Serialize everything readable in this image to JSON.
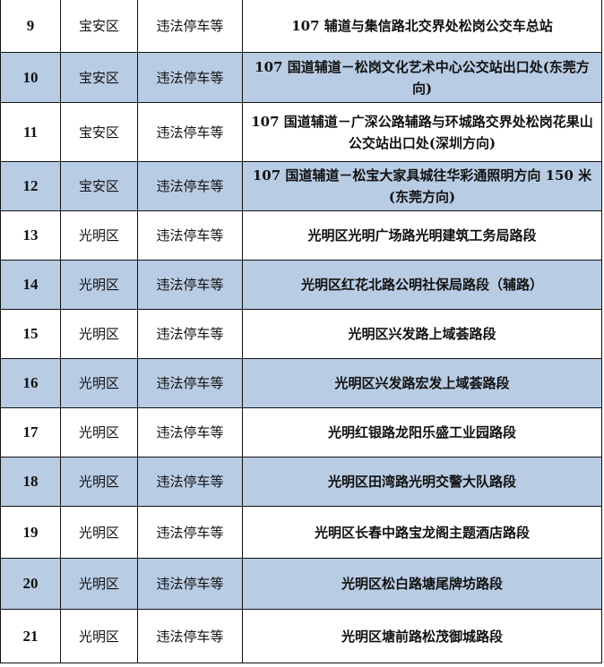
{
  "table": {
    "rows": [
      {
        "no": "9",
        "district": "宝安区",
        "type": "违法停车等",
        "location": "107 辅道与集信路北交界处松岗公交车总站",
        "shaded": false
      },
      {
        "no": "10",
        "district": "宝安区",
        "type": "违法停车等",
        "location": "107 国道辅道－松岗文化艺术中心公交站出口处(东莞方向)",
        "shaded": true
      },
      {
        "no": "11",
        "district": "宝安区",
        "type": "违法停车等",
        "location": "107 国道辅道－广深公路辅路与环城路交界处松岗花果山公交站出口处(深圳方向)",
        "shaded": false
      },
      {
        "no": "12",
        "district": "宝安区",
        "type": "违法停车等",
        "location": "107 国道辅道－松宝大家具城往华彩通照明方向 150 米(东莞方向)",
        "shaded": true
      },
      {
        "no": "13",
        "district": "光明区",
        "type": "违法停车等",
        "location": "光明区光明广场路光明建筑工务局路段",
        "shaded": false
      },
      {
        "no": "14",
        "district": "光明区",
        "type": "违法停车等",
        "location": "光明区红花北路公明社保局路段（辅路）",
        "shaded": true
      },
      {
        "no": "15",
        "district": "光明区",
        "type": "违法停车等",
        "location": "光明区兴发路上域荟路段",
        "shaded": false
      },
      {
        "no": "16",
        "district": "光明区",
        "type": "违法停车等",
        "location": "光明区兴发路宏发上域荟路段",
        "shaded": true
      },
      {
        "no": "17",
        "district": "光明区",
        "type": "违法停车等",
        "location": "光明红银路龙阳乐盛工业园路段",
        "shaded": false
      },
      {
        "no": "18",
        "district": "光明区",
        "type": "违法停车等",
        "location": "光明区田湾路光明交警大队路段",
        "shaded": true
      },
      {
        "no": "19",
        "district": "光明区",
        "type": "违法停车等",
        "location": "光明区长春中路宝龙阁主题酒店路段",
        "shaded": false
      },
      {
        "no": "20",
        "district": "光明区",
        "type": "违法停车等",
        "location": "光明区松白路塘尾牌坊路段",
        "shaded": true
      },
      {
        "no": "21",
        "district": "光明区",
        "type": "违法停车等",
        "location": "光明区塘前路松茂御城路段",
        "shaded": false
      }
    ],
    "shade_color": "#b8cce4"
  }
}
